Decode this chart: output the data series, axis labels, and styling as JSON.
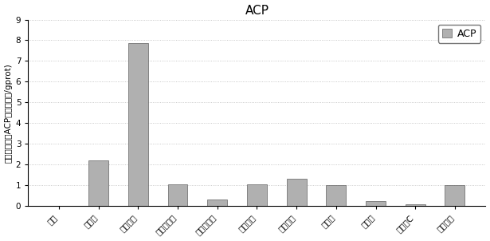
{
  "title": "ACP",
  "ylabel": "酸性磷酸酶（ACP，金氏单位/gprot)",
  "categories": [
    "对照",
    "松花粉",
    "枸杞多糖",
    "茶树菇多糖",
    "金针菇多糖",
    "天芝多糖",
    "云芝多糖",
    "黄芪甘",
    "甲壳素",
    "维生素C",
    "左旋和唆"
  ],
  "values": [
    0.0,
    2.2,
    7.85,
    1.05,
    0.3,
    1.05,
    1.3,
    1.0,
    0.25,
    0.07,
    1.0
  ],
  "bar_color": "#b0b0b0",
  "bar_edge_color": "#606060",
  "ylim": [
    0,
    9
  ],
  "yticks": [
    0,
    1,
    2,
    3,
    4,
    5,
    6,
    7,
    8,
    9
  ],
  "legend_label": "ACP",
  "title_fontsize": 11,
  "ylabel_fontsize": 7.5,
  "tick_fontsize": 7.5,
  "legend_fontsize": 9
}
